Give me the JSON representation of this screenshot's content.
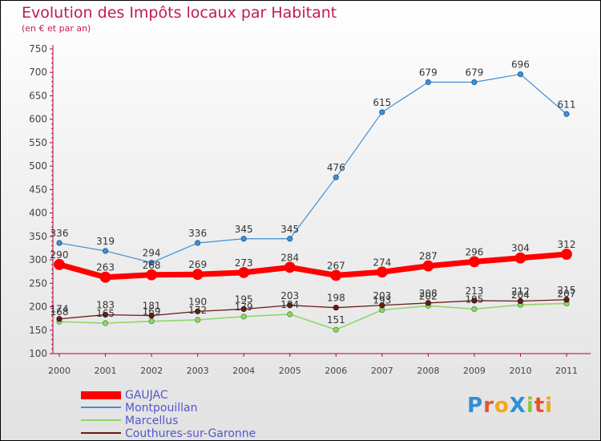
{
  "header": {
    "title": "Evolution des Impôts locaux par Habitant",
    "subtitle": "(en € et par an)"
  },
  "logo": {
    "text": "ProXiti",
    "letters": [
      "P",
      "r",
      "o",
      "X",
      "i",
      "t",
      "i"
    ],
    "colors": [
      "#2d8fd8",
      "#e8542a",
      "#f2a71b",
      "#2d8fd8",
      "#8cc63f",
      "#e8542a",
      "#f2a71b"
    ]
  },
  "chart_data": {
    "type": "line",
    "title": "Evolution des Impôts locaux par Habitant",
    "subtitle": "(en € et par an)",
    "xlabel": "",
    "ylabel": "",
    "categories": [
      "2000",
      "2001",
      "2002",
      "2003",
      "2004",
      "2005",
      "2006",
      "2007",
      "2008",
      "2009",
      "2010",
      "2011"
    ],
    "ylim": [
      100,
      750
    ],
    "yticks": [
      100,
      150,
      200,
      250,
      300,
      350,
      400,
      450,
      500,
      550,
      600,
      650,
      700,
      750
    ],
    "grid": false,
    "legend_position": "bottom-left",
    "series": [
      {
        "name": "GAUJAC",
        "color": "#ff0000",
        "values": [
          290,
          263,
          268,
          269,
          273,
          284,
          267,
          274,
          287,
          296,
          304,
          312
        ]
      },
      {
        "name": "Montpouillan",
        "color": "#3f8fd2",
        "values": [
          336,
          319,
          294,
          336,
          345,
          345,
          476,
          615,
          679,
          679,
          696,
          611
        ]
      },
      {
        "name": "Marcellus",
        "color": "#8fd66a",
        "values": [
          168,
          165,
          169,
          172,
          179,
          184,
          151,
          193,
          202,
          195,
          204,
          207
        ]
      },
      {
        "name": "Couthures-sur-Garonne",
        "color": "#6b1a1a",
        "values": [
          174,
          183,
          181,
          190,
          195,
          203,
          198,
          203,
          208,
          213,
          212,
          215
        ]
      }
    ]
  }
}
